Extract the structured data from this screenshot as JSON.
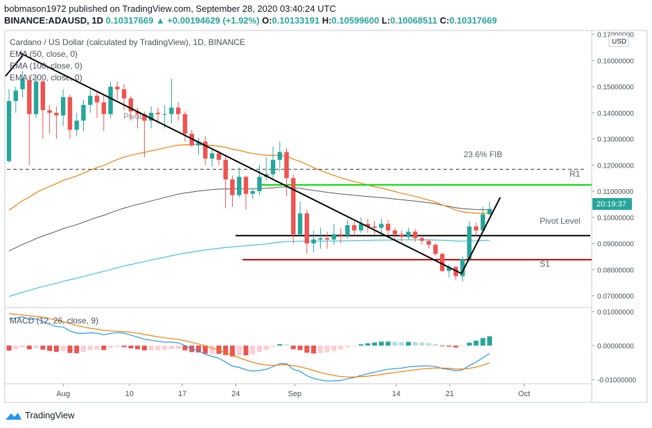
{
  "header": {
    "publisher_line": "bobmason1972 published on TradingView.com, September 28, 2020 03:40:24 UTC",
    "symbol": "BINANCE:ADAUSD, 1D",
    "last": "0.10317669",
    "change": "▲ +0.00194629 (+1.92%)",
    "o_label": "O:",
    "o_value": "0.10133191",
    "h_label": "H:",
    "h_value": "0.10599600",
    "l_label": "L:",
    "l_value": "0.10068511",
    "c_label": "C:",
    "c_value": "0.10317669"
  },
  "legend": {
    "title": "Cardano / US Dollar (calculated by TradingView), 1D, BINANCE",
    "ema50": "EMA (50, close, 0)",
    "ema100": "EMA (100, close, 0)",
    "ema200": "EMA (200, close, 0)",
    "macd": "MACD (12, 26, close, 9)"
  },
  "currency_badge": "USD",
  "price_badge": "20:19:37",
  "annotations": {
    "fib": "23.6% FIB",
    "r1": "R1",
    "pivot": "Pivot Level",
    "s1": "S1",
    "pivot_left": "Pivot"
  },
  "footer": {
    "brand": "TradingView"
  },
  "colors": {
    "up": "#26a69a",
    "down": "#ef5350",
    "ema50": "#f57c00",
    "ema100": "#555555",
    "ema200": "#40c4d8",
    "macd": "#2196f3",
    "signal": "#f57c00",
    "green_line": "#00e000",
    "red_line": "#d50000"
  },
  "chart_data": [
    {
      "type": "candlestick",
      "title": "Cardano / US Dollar (calculated by TradingView), 1D, BINANCE",
      "x_ticks": [
        "Aug",
        "10",
        "17",
        "24",
        "Sep",
        "14",
        "21",
        "Oct"
      ],
      "y_ticks": [
        "0.17000000",
        "0.16000000",
        "0.15000000",
        "0.14000000",
        "0.13000000",
        "0.12000000",
        "0.11000000",
        "0.10000000",
        "0.09000000",
        "0.08000000",
        "0.07000000"
      ],
      "ylim": [
        0.0655,
        0.1715
      ],
      "levels": {
        "fib_23_6": 0.1184,
        "r1": 0.1124,
        "pivot": 0.093,
        "s1": 0.0838
      },
      "candles": [
        [
          0.1215,
          0.1445,
          0.149,
          0.121
        ],
        [
          0.1445,
          0.1485,
          0.15,
          0.14
        ],
        [
          0.149,
          0.153,
          0.156,
          0.146
        ],
        [
          0.1525,
          0.1395,
          0.1545,
          0.12
        ],
        [
          0.1395,
          0.152,
          0.1545,
          0.138
        ],
        [
          0.152,
          0.141,
          0.1525,
          0.13
        ],
        [
          0.141,
          0.14,
          0.143,
          0.132
        ],
        [
          0.14,
          0.139,
          0.1425,
          0.13
        ],
        [
          0.139,
          0.146,
          0.149,
          0.135
        ],
        [
          0.146,
          0.1335,
          0.147,
          0.13
        ],
        [
          0.1335,
          0.137,
          0.14,
          0.131
        ],
        [
          0.137,
          0.143,
          0.145,
          0.133
        ],
        [
          0.143,
          0.1465,
          0.149,
          0.14
        ],
        [
          0.1465,
          0.144,
          0.148,
          0.138
        ],
        [
          0.144,
          0.1395,
          0.147,
          0.133
        ],
        [
          0.1395,
          0.15,
          0.152,
          0.138
        ],
        [
          0.15,
          0.149,
          0.152,
          0.145
        ],
        [
          0.149,
          0.1455,
          0.151,
          0.141
        ],
        [
          0.1455,
          0.1405,
          0.1465,
          0.137
        ],
        [
          0.1405,
          0.1395,
          0.142,
          0.134
        ],
        [
          0.1395,
          0.137,
          0.1405,
          0.123
        ],
        [
          0.137,
          0.14,
          0.1425,
          0.134
        ],
        [
          0.14,
          0.1395,
          0.142,
          0.136
        ],
        [
          0.1395,
          0.1395,
          0.143,
          0.134
        ],
        [
          0.1395,
          0.142,
          0.153,
          0.136
        ],
        [
          0.142,
          0.1395,
          0.144,
          0.137
        ],
        [
          0.1395,
          0.132,
          0.1405,
          0.129
        ],
        [
          0.132,
          0.1275,
          0.1335,
          0.127
        ],
        [
          0.1275,
          0.129,
          0.1305,
          0.124
        ],
        [
          0.129,
          0.1225,
          0.131,
          0.12
        ],
        [
          0.1225,
          0.1245,
          0.126,
          0.1195
        ],
        [
          0.1245,
          0.122,
          0.1255,
          0.12
        ],
        [
          0.122,
          0.1145,
          0.124,
          0.1035
        ],
        [
          0.1145,
          0.1085,
          0.116,
          0.104
        ],
        [
          0.1085,
          0.1155,
          0.119,
          0.1075
        ],
        [
          0.1155,
          0.109,
          0.116,
          0.103
        ],
        [
          0.109,
          0.11,
          0.111,
          0.107
        ],
        [
          0.11,
          0.1155,
          0.12,
          0.1085
        ],
        [
          0.1155,
          0.1165,
          0.123,
          0.114
        ],
        [
          0.1165,
          0.122,
          0.127,
          0.115
        ],
        [
          0.122,
          0.125,
          0.129,
          0.1175
        ],
        [
          0.125,
          0.115,
          0.1265,
          0.108
        ],
        [
          0.115,
          0.0935,
          0.1165,
          0.09
        ],
        [
          0.0935,
          0.1015,
          0.106,
          0.093
        ],
        [
          0.1015,
          0.09,
          0.103,
          0.086
        ],
        [
          0.09,
          0.0915,
          0.095,
          0.0865
        ],
        [
          0.0915,
          0.092,
          0.096,
          0.088
        ],
        [
          0.092,
          0.0915,
          0.0945,
          0.088
        ],
        [
          0.0915,
          0.0935,
          0.0975,
          0.0895
        ],
        [
          0.0935,
          0.093,
          0.096,
          0.09
        ],
        [
          0.093,
          0.097,
          0.099,
          0.092
        ],
        [
          0.097,
          0.095,
          0.0985,
          0.093
        ],
        [
          0.095,
          0.0975,
          0.1,
          0.094
        ],
        [
          0.0975,
          0.0965,
          0.0995,
          0.094
        ],
        [
          0.0965,
          0.096,
          0.0985,
          0.0935
        ],
        [
          0.096,
          0.0975,
          0.0995,
          0.094
        ],
        [
          0.0975,
          0.095,
          0.099,
          0.0935
        ],
        [
          0.095,
          0.0935,
          0.096,
          0.0915
        ],
        [
          0.0935,
          0.0925,
          0.095,
          0.0905
        ],
        [
          0.0925,
          0.0945,
          0.096,
          0.0915
        ],
        [
          0.0945,
          0.092,
          0.0955,
          0.0905
        ],
        [
          0.092,
          0.091,
          0.0935,
          0.0895
        ],
        [
          0.091,
          0.0895,
          0.0915,
          0.088
        ],
        [
          0.0895,
          0.086,
          0.09,
          0.0855
        ],
        [
          0.086,
          0.0795,
          0.0865,
          0.079
        ],
        [
          0.0795,
          0.081,
          0.082,
          0.077
        ],
        [
          0.081,
          0.0775,
          0.0815,
          0.076
        ],
        [
          0.0775,
          0.084,
          0.085,
          0.0755
        ],
        [
          0.084,
          0.0965,
          0.0985,
          0.083
        ],
        [
          0.0965,
          0.095,
          0.098,
          0.093
        ],
        [
          0.095,
          0.1012,
          0.104,
          0.0945
        ],
        [
          0.1012,
          0.1032,
          0.106,
          0.1007
        ]
      ]
    },
    {
      "type": "line",
      "title": "MACD (12, 26, close, 9)",
      "y_ticks": [
        "0.01000000",
        "0.00000000",
        "-0.01000000"
      ],
      "ylim": [
        -0.0112,
        0.0112
      ]
    }
  ]
}
